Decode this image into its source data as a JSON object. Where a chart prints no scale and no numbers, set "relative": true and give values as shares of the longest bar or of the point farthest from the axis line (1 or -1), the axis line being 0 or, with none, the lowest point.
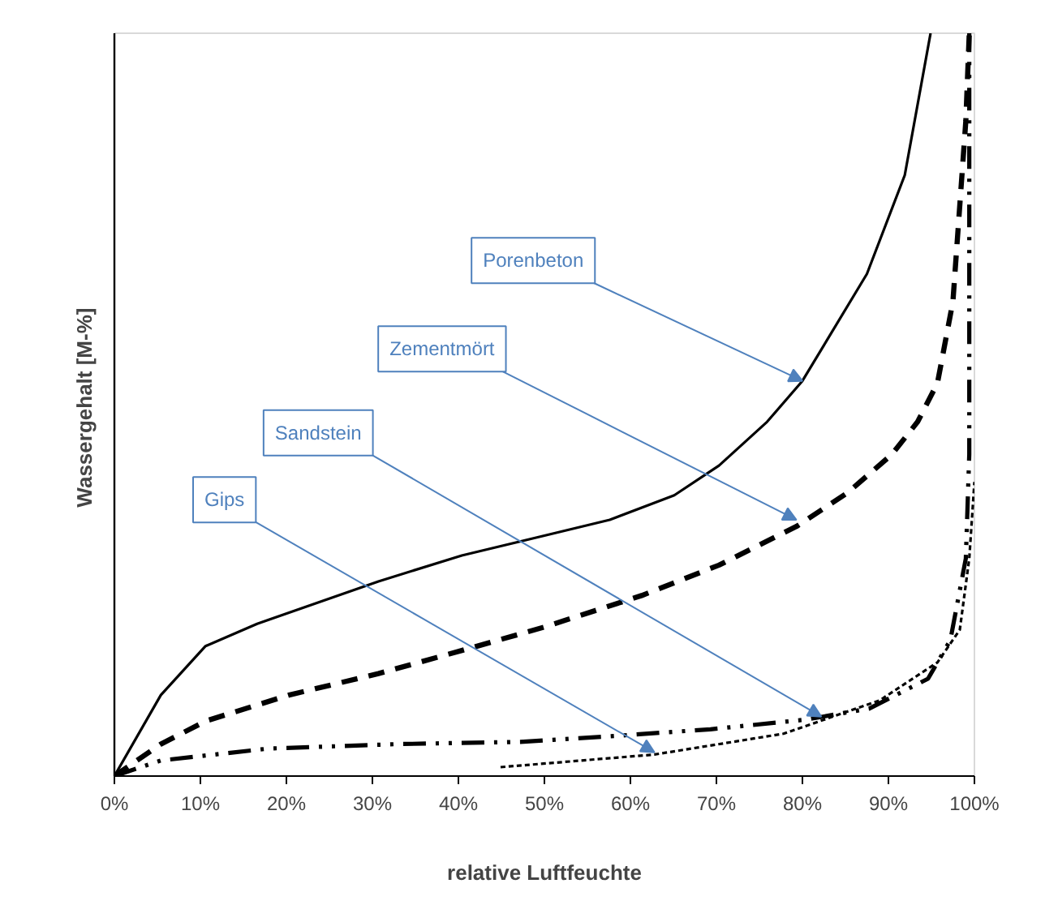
{
  "chart_data": {
    "type": "line",
    "relative": true,
    "xlabel": "relative Luftfeuchte",
    "ylabel": "Wassergehalt  [M-%]",
    "xlim": [
      0,
      100
    ],
    "xticks": [
      {
        "value": 0,
        "label": "0%"
      },
      {
        "value": 10,
        "label": "10%"
      },
      {
        "value": 20,
        "label": "20%"
      },
      {
        "value": 30,
        "label": "30%"
      },
      {
        "value": 40,
        "label": "40%"
      },
      {
        "value": 50,
        "label": "50%"
      },
      {
        "value": 60,
        "label": "60%"
      },
      {
        "value": 70,
        "label": "70%"
      },
      {
        "value": 80,
        "label": "80%"
      },
      {
        "value": 90,
        "label": "90%"
      },
      {
        "value": 100,
        "label": "100%"
      }
    ],
    "tick_labels": "x",
    "grid": false,
    "marker": "none",
    "series": [
      {
        "color": "#000000",
        "line_style": "solid",
        "x": [
          0,
          5.4,
          10.6,
          16.6,
          30.7,
          40.4,
          50.1,
          57.6,
          65.1,
          70.3,
          75.9,
          80,
          87.5,
          91.9,
          94.9
        ],
        "values": [
          0,
          0.109,
          0.175,
          0.205,
          0.262,
          0.297,
          0.324,
          0.345,
          0.378,
          0.418,
          0.477,
          0.532,
          0.676,
          0.809,
          1.0
        ]
      },
      {
        "color": "#000000",
        "line_style": "dashed",
        "x": [
          0,
          5.4,
          10.6,
          20.3,
          30.7,
          40.4,
          50.1,
          61.3,
          70.3,
          79.3,
          85.2,
          90.4,
          93.4,
          95.7,
          97.5,
          99,
          99.4
        ],
        "values": [
          0,
          0.043,
          0.074,
          0.109,
          0.138,
          0.169,
          0.201,
          0.243,
          0.284,
          0.336,
          0.381,
          0.433,
          0.477,
          0.529,
          0.639,
          0.882,
          1.0
        ]
      },
      {
        "color": "#000000",
        "line_style": "dashdot",
        "x": [
          0,
          5.4,
          17.9,
          32.8,
          47.2,
          58.2,
          69.3,
          80.4,
          87.8,
          94.6,
          97.2,
          99,
          99.4,
          99.4,
          99.4
        ],
        "values": [
          0,
          0.021,
          0.037,
          0.043,
          0.046,
          0.054,
          0.063,
          0.076,
          0.091,
          0.131,
          0.183,
          0.293,
          0.433,
          0.661,
          1.0
        ]
      },
      {
        "color": "#000000",
        "line_style": "dotted",
        "x": [
          44.9,
          62.8,
          77.8,
          89,
          95.7,
          98.3,
          99.4,
          100
        ],
        "values": [
          0.012,
          0.029,
          0.057,
          0.102,
          0.153,
          0.197,
          0.293,
          0.396
        ]
      }
    ],
    "annotations": [
      {
        "text": "Porenbeton",
        "x": 80,
        "y": 0.532
      },
      {
        "text": "Zementmört",
        "x": 79.3,
        "y": 0.345
      },
      {
        "text": "Sandstein",
        "x": 82.2,
        "y": 0.08
      },
      {
        "text": "Gips",
        "x": 62.8,
        "y": 0.032
      }
    ]
  }
}
